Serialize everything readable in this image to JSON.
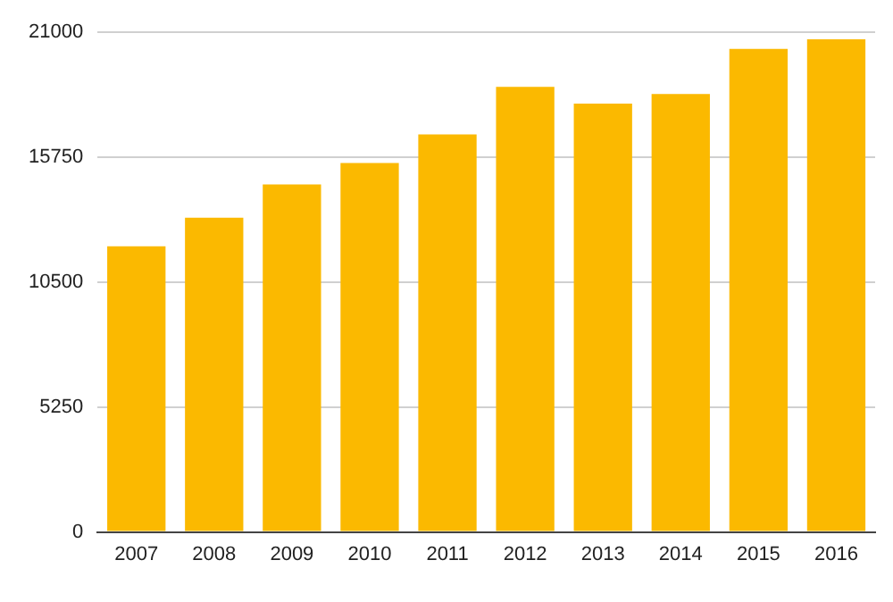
{
  "chart_data": {
    "type": "bar",
    "categories": [
      "2007",
      "2008",
      "2009",
      "2010",
      "2011",
      "2012",
      "2013",
      "2014",
      "2015",
      "2016"
    ],
    "values": [
      12000,
      13200,
      14600,
      15500,
      16700,
      18700,
      18000,
      18400,
      20300,
      20700
    ],
    "color": "#fbb900",
    "ylim": [
      0,
      21000
    ],
    "yticks": [
      0,
      5250,
      10500,
      15750,
      21000
    ],
    "grid": "y"
  }
}
